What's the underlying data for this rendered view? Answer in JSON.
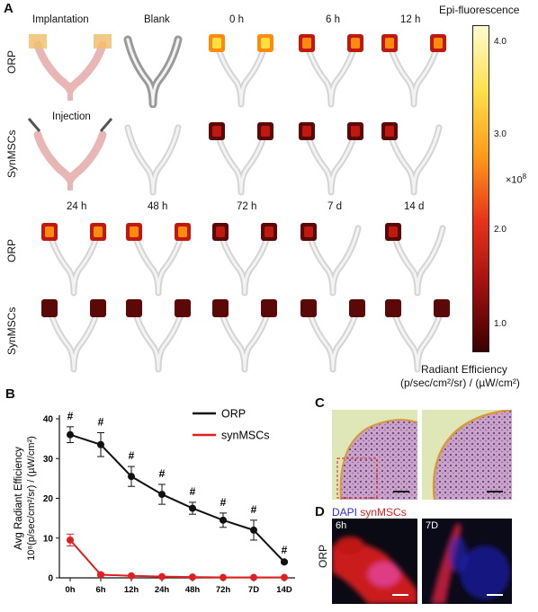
{
  "panel_a": {
    "letter": "A",
    "col_labels_top": [
      "Implantation",
      "Blank",
      "0 h",
      "6 h",
      "12 h"
    ],
    "col_labels_bottom": [
      "24 h",
      "48 h",
      "72 h",
      "7 d",
      "14 d"
    ],
    "row_labels": [
      "ORP",
      "SynMSCs",
      "ORP",
      "SynMSCs"
    ],
    "injection_label": "Injection",
    "colorbar": {
      "title": "Epi-fluorescence",
      "ticks": [
        "4.0",
        "3.0",
        "2.0",
        "1.0"
      ],
      "multiplier": "×10",
      "multiplier_exp": "8",
      "unit_line1": "Radiant Efficiency",
      "unit_line2": "(p/sec/cm²/sr) / (µW/cm²)",
      "colors": [
        "#fffbd0",
        "#ffe04a",
        "#ff9a1a",
        "#e8321a",
        "#a01010",
        "#3a0000"
      ]
    }
  },
  "panel_b": {
    "letter": "B",
    "legend": [
      "ORP",
      "synMSCs"
    ],
    "colors": {
      "orp": "#111111",
      "synmscs": "#e02020"
    },
    "ylabel_line1": "Avg Radiant Efficiency",
    "ylabel_line2": "10⁸(p/sec/cm²/sr) / (µW/cm²)",
    "yticks": [
      "0",
      "10",
      "20",
      "30",
      "40"
    ],
    "sig_marker": "#"
  },
  "chart_data": {
    "type": "line",
    "categories": [
      "0h",
      "6h",
      "12h",
      "24h",
      "48h",
      "72h",
      "7D",
      "14D"
    ],
    "ylim": [
      0,
      40
    ],
    "series": [
      {
        "name": "ORP",
        "values": [
          36,
          33.5,
          25.5,
          21,
          17.5,
          14.5,
          12,
          4
        ],
        "errors": [
          2,
          3,
          2.5,
          2.5,
          1.5,
          1.8,
          2.5,
          0.3
        ]
      },
      {
        "name": "synMSCs",
        "values": [
          9.5,
          0.8,
          0.5,
          0.3,
          0.2,
          0.1,
          0.1,
          0.1
        ],
        "errors": [
          1.5,
          0.3,
          0.2,
          0.1,
          0.1,
          0.1,
          0.1,
          0.1
        ]
      }
    ],
    "significance": [
      "#",
      "#",
      "#",
      "#",
      "#",
      "#",
      "#",
      "#"
    ]
  },
  "panel_c": {
    "letter": "C"
  },
  "panel_d": {
    "letter": "D",
    "stain_dapi": "DAPI",
    "stain_syn": "synMSCs",
    "row_label": "ORP",
    "image_labels": [
      "6h",
      "7D"
    ],
    "colors": {
      "dapi": "#2a2ae8",
      "syn": "#e02020"
    }
  }
}
